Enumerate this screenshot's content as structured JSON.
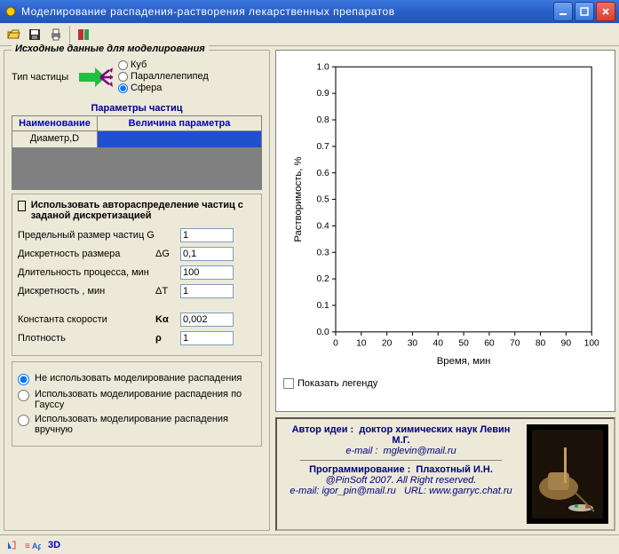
{
  "window": {
    "title": "Моделирование  распадения-растворения  лекарственных препаратов"
  },
  "toolbar_icons": [
    "open",
    "save",
    "print",
    "sep",
    "exit"
  ],
  "left": {
    "group_title": "Исходные данные для моделирования",
    "type_label": "Тип частицы",
    "shapes": {
      "cube": "Куб",
      "para": "Параллелепипед",
      "sphere": "Сфера"
    },
    "selected_shape": "sphere",
    "params_title": "Параметры частиц",
    "table": {
      "col1": "Наименование",
      "col2": "Величина параметра",
      "row1_name": "Диаметр,D"
    },
    "auto_dist_label": "Использовать автораспределение частиц с заданой дискретизацией",
    "fields": {
      "g": {
        "label": "Предельный размер частиц G",
        "sym": "",
        "value": "1"
      },
      "dg": {
        "label": "Дискретность размера",
        "sym": "ΔG",
        "value": "0,1"
      },
      "dur": {
        "label": "Длительность процесса, мин",
        "sym": "",
        "value": "100"
      },
      "dt": {
        "label": "Дискретность , мин",
        "sym": "ΔT",
        "value": "1"
      },
      "ka": {
        "label": "Константа скорости",
        "sym": "Kα",
        "value": "0,002"
      },
      "rho": {
        "label": "Плотность",
        "sym": "ρ",
        "value": "1"
      }
    },
    "modes": {
      "none": "Не использовать моделирование распадения",
      "gauss": "Использовать моделирование распадения по Гауссу",
      "manual": "Использовать моделирование распадения вручную",
      "selected": "none"
    }
  },
  "chart": {
    "type": "line",
    "xlabel": "Время, мин",
    "ylabel": "Растворимость, %",
    "xlim": [
      0,
      100
    ],
    "xtick_step": 10,
    "ylim": [
      0,
      1.0
    ],
    "ytick_step": 0.1,
    "xticks": [
      "0",
      "10",
      "20",
      "30",
      "40",
      "50",
      "60",
      "70",
      "80",
      "90",
      "100"
    ],
    "yticks": [
      "0.0",
      "0.1",
      "0.2",
      "0.3",
      "0.4",
      "0.5",
      "0.6",
      "0.7",
      "0.8",
      "0.9",
      "1.0"
    ],
    "background_color": "#ffffff",
    "axis_color": "#000000",
    "label_fontsize": 11,
    "tick_fontsize": 10,
    "show_legend_label": "Показать легенду"
  },
  "author": {
    "idea_label": "Автор идеи :",
    "idea_name": "доктор химических наук Левин М.Г.",
    "email1_label": "e-mail :",
    "email1": "mglevin@mail.ru",
    "prog_label": "Программирование :",
    "prog_name": "Плахотный И.Н.",
    "copyright": "@PinSoft 2007. All  Right   reserved.",
    "email2_label": "e-mail:",
    "email2": "igor_pin@mail.ru",
    "url_label": "URL:",
    "url": "www.garryc.chat.ru"
  },
  "statusbar": {
    "item_3d": "3D"
  }
}
